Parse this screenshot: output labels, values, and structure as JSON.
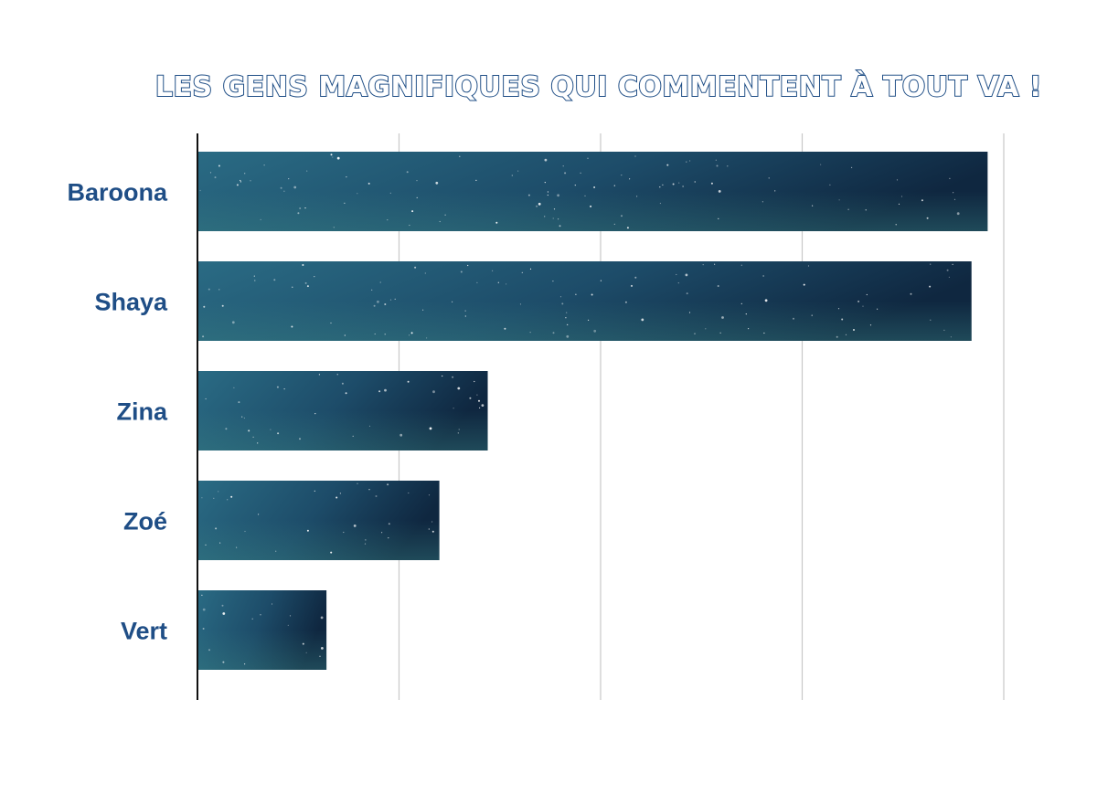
{
  "chart_data": {
    "type": "bar",
    "orientation": "horizontal",
    "title": "Les gens magnifiques qui commentent à tout va !",
    "categories": [
      "Baroona",
      "Shaya",
      "Zina",
      "Zoé",
      "Vert"
    ],
    "values": [
      98,
      96,
      36,
      30,
      16
    ],
    "xlim": [
      0,
      100
    ],
    "xlabel": "",
    "ylabel": "",
    "grid": true,
    "x_tick_labels_shown": false,
    "legend": "none",
    "bar_fill": "starry night sky",
    "colors": {
      "label": "#1f4e86",
      "title_outline": "#1f4e86",
      "grid": "#c8c8c8",
      "axis": "#111111",
      "bar_dark": "#12304a",
      "bar_light": "#245f7a"
    }
  }
}
